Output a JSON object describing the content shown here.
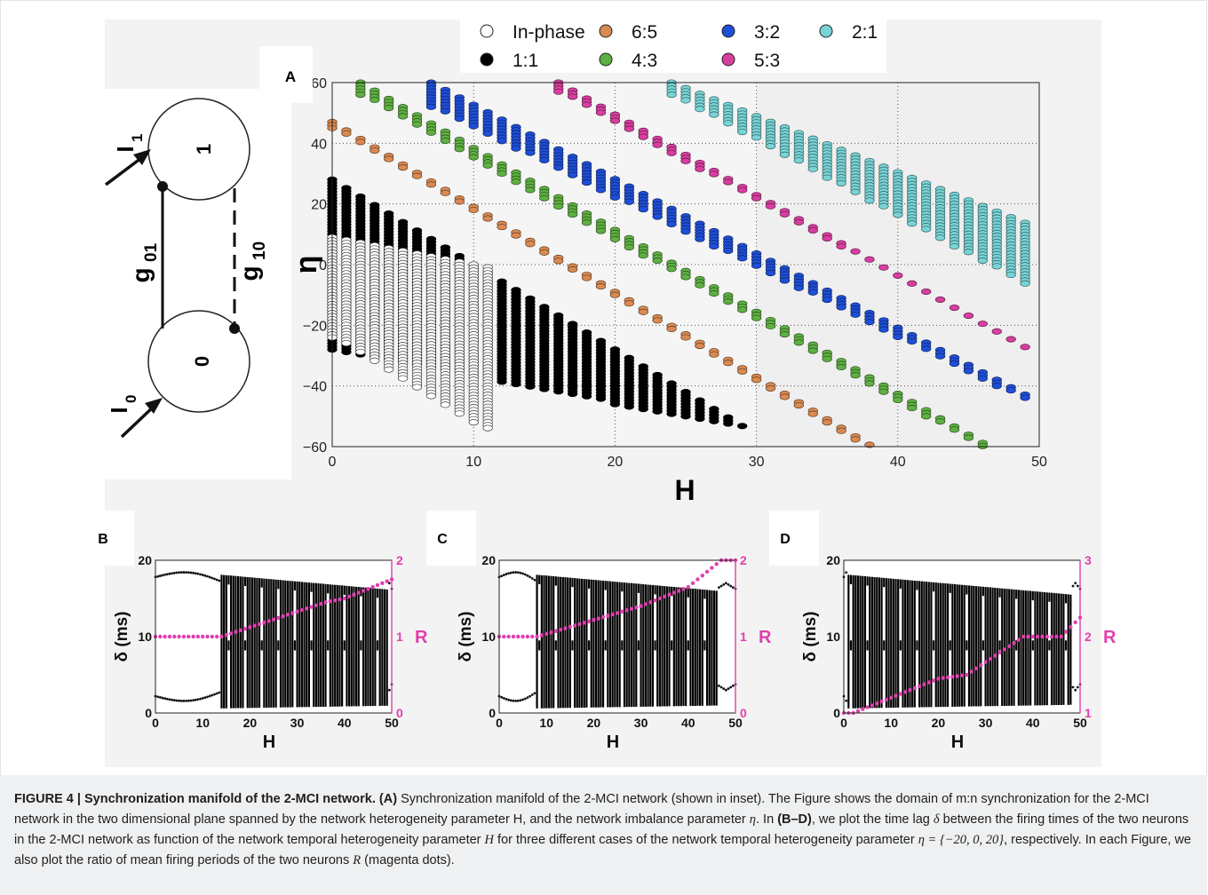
{
  "legend": [
    {
      "label": "In-phase",
      "color": "#ffffff"
    },
    {
      "label": "1:1",
      "color": "#000000"
    },
    {
      "label": "6:5",
      "color": "#d98a52"
    },
    {
      "label": "4:3",
      "color": "#5fb043"
    },
    {
      "label": "3:2",
      "color": "#1f4fd8"
    },
    {
      "label": "5:3",
      "color": "#d83ea0"
    },
    {
      "label": "2:1",
      "color": "#78d4d6"
    }
  ],
  "inset": {
    "node_1": "1",
    "node_0": "0",
    "input_1": "I",
    "input_1_sub": "1",
    "input_0": "I",
    "input_0_sub": "0",
    "edge_01": "g",
    "edge_01_sub": "01",
    "edge_10": "g",
    "edge_10_sub": "10"
  },
  "panels": {
    "A": "A",
    "B": "B",
    "C": "C",
    "D": "D"
  },
  "chart_data": [
    {
      "panel": "A",
      "type": "scatter",
      "xlabel": "H",
      "ylabel": "η",
      "xlim": [
        0,
        50
      ],
      "ylim": [
        -60,
        60
      ],
      "xticks": [
        "0",
        "10",
        "20",
        "30",
        "40",
        "50"
      ],
      "yticks": [
        "−60",
        "−40",
        "−20",
        "0",
        "20",
        "40",
        "60"
      ],
      "grid": true,
      "legend_position": "top",
      "series": [
        {
          "name": "1:1",
          "color": "#000000",
          "x_start": 0,
          "x_end": 29,
          "upper_at_start": 28,
          "upper_slope": -2.8,
          "lower_at_start": -28,
          "lower_slope": -0.9
        },
        {
          "name": "In-phase",
          "color": "#ffffff",
          "x_start": 0,
          "x_end": 11,
          "upper_at_start": 9,
          "upper_slope": -0.9,
          "lower_at_start": -24,
          "lower_slope": -2.8
        },
        {
          "name": "6:5",
          "color": "#d98a52",
          "x_start": 0,
          "x_end": 39,
          "upper_at_start": 47,
          "upper_slope": -2.8,
          "lower_at_start": 45,
          "lower_slope": -2.78
        },
        {
          "name": "4:3",
          "color": "#5fb043",
          "x_start": 2,
          "x_end": 46,
          "upper_at_start": 60,
          "upper_slope": -2.7,
          "lower_at_start": 56,
          "lower_slope": -2.65
        },
        {
          "name": "3:2",
          "color": "#1f4fd8",
          "x_start": 7,
          "x_end": 49,
          "upper_at_start": 60,
          "upper_slope": -2.45,
          "lower_at_start": 52,
          "lower_slope": -2.3
        },
        {
          "name": "5:3",
          "color": "#d83ea0",
          "x_start": 16,
          "x_end": 49,
          "upper_at_start": 60,
          "upper_slope": -2.65,
          "lower_at_start": 57,
          "lower_slope": -2.55
        },
        {
          "name": "2:1",
          "color": "#78d4d6",
          "x_start": 24,
          "x_end": 49,
          "upper_at_start": 60,
          "upper_slope": -1.85,
          "lower_at_start": 56,
          "lower_slope": -2.5
        }
      ]
    },
    {
      "panel": "B",
      "type": "scatter",
      "eta": -20,
      "xlabel": "H",
      "ylabel": "δ (ms)",
      "y2label": "R",
      "xlim": [
        0,
        50
      ],
      "ylim": [
        0,
        20
      ],
      "y2lim": [
        0,
        2
      ],
      "xticks": [
        "0",
        "10",
        "20",
        "30",
        "40",
        "50"
      ],
      "yticks": [
        "0",
        "10",
        "20"
      ],
      "y2ticks": [
        "0",
        "1",
        "2"
      ],
      "R_series": [
        [
          0,
          1
        ],
        [
          14,
          1
        ],
        [
          36,
          1.45
        ],
        [
          40,
          1.5
        ],
        [
          50,
          1.75
        ]
      ],
      "delta_band_H": [
        14,
        49
      ]
    },
    {
      "panel": "C",
      "type": "scatter",
      "eta": 0,
      "xlabel": "H",
      "ylabel": "δ (ms)",
      "y2label": "R",
      "xlim": [
        0,
        50
      ],
      "ylim": [
        0,
        20
      ],
      "y2lim": [
        0,
        2
      ],
      "xticks": [
        "0",
        "10",
        "20",
        "30",
        "40",
        "50"
      ],
      "yticks": [
        "0",
        "10",
        "20"
      ],
      "y2ticks": [
        "0",
        "1",
        "2"
      ],
      "R_series": [
        [
          0,
          1
        ],
        [
          8,
          1
        ],
        [
          30,
          1.4
        ],
        [
          40,
          1.65
        ],
        [
          45,
          1.9
        ],
        [
          47,
          2
        ],
        [
          50,
          2
        ]
      ],
      "delta_band_H": [
        8,
        46
      ]
    },
    {
      "panel": "D",
      "type": "scatter",
      "eta": 20,
      "xlabel": "H",
      "ylabel": "δ (ms)",
      "y2label": "R",
      "xlim": [
        0,
        50
      ],
      "ylim": [
        0,
        20
      ],
      "y2lim": [
        1,
        3
      ],
      "xticks": [
        "0",
        "10",
        "20",
        "30",
        "40",
        "50"
      ],
      "yticks": [
        "0",
        "10",
        "20"
      ],
      "y2ticks": [
        "1",
        "2",
        "3"
      ],
      "R_series": [
        [
          0,
          1
        ],
        [
          2,
          1
        ],
        [
          20,
          1.45
        ],
        [
          26,
          1.5
        ],
        [
          38,
          2
        ],
        [
          46,
          2
        ],
        [
          50,
          2.25
        ]
      ],
      "delta_band_H": [
        1,
        48
      ]
    }
  ],
  "caption": {
    "figure_label": "FIGURE 4 | Synchronization manifold of the 2-MCI network.",
    "p1_a": "(A)",
    "p1_text": "Synchronization manifold of the 2-MCI network (shown in inset). The Figure shows the domain of m:n synchronization for the 2-MCI network in the two dimensional plane spanned by the network heterogeneity parameter H, and the network imbalance parameter",
    "eta": "η",
    "p1_b": ". In",
    "p1_bd": "(B–D)",
    "p1_c": ", we plot the time lag",
    "delta": "δ",
    "p1_d": "between the firing times of the two neurons in the 2-MCI network as function of the network temporal heterogeneity parameter",
    "H": "H",
    "p1_e": "for three different cases of the network temporal heterogeneity parameter",
    "eta_set": "η = {−20, 0, 20}",
    "p1_f": ", respectively. In each Figure, we also plot the ratio of mean firing periods of the two neurons",
    "R": "R",
    "p1_g": "(magenta dots)."
  }
}
